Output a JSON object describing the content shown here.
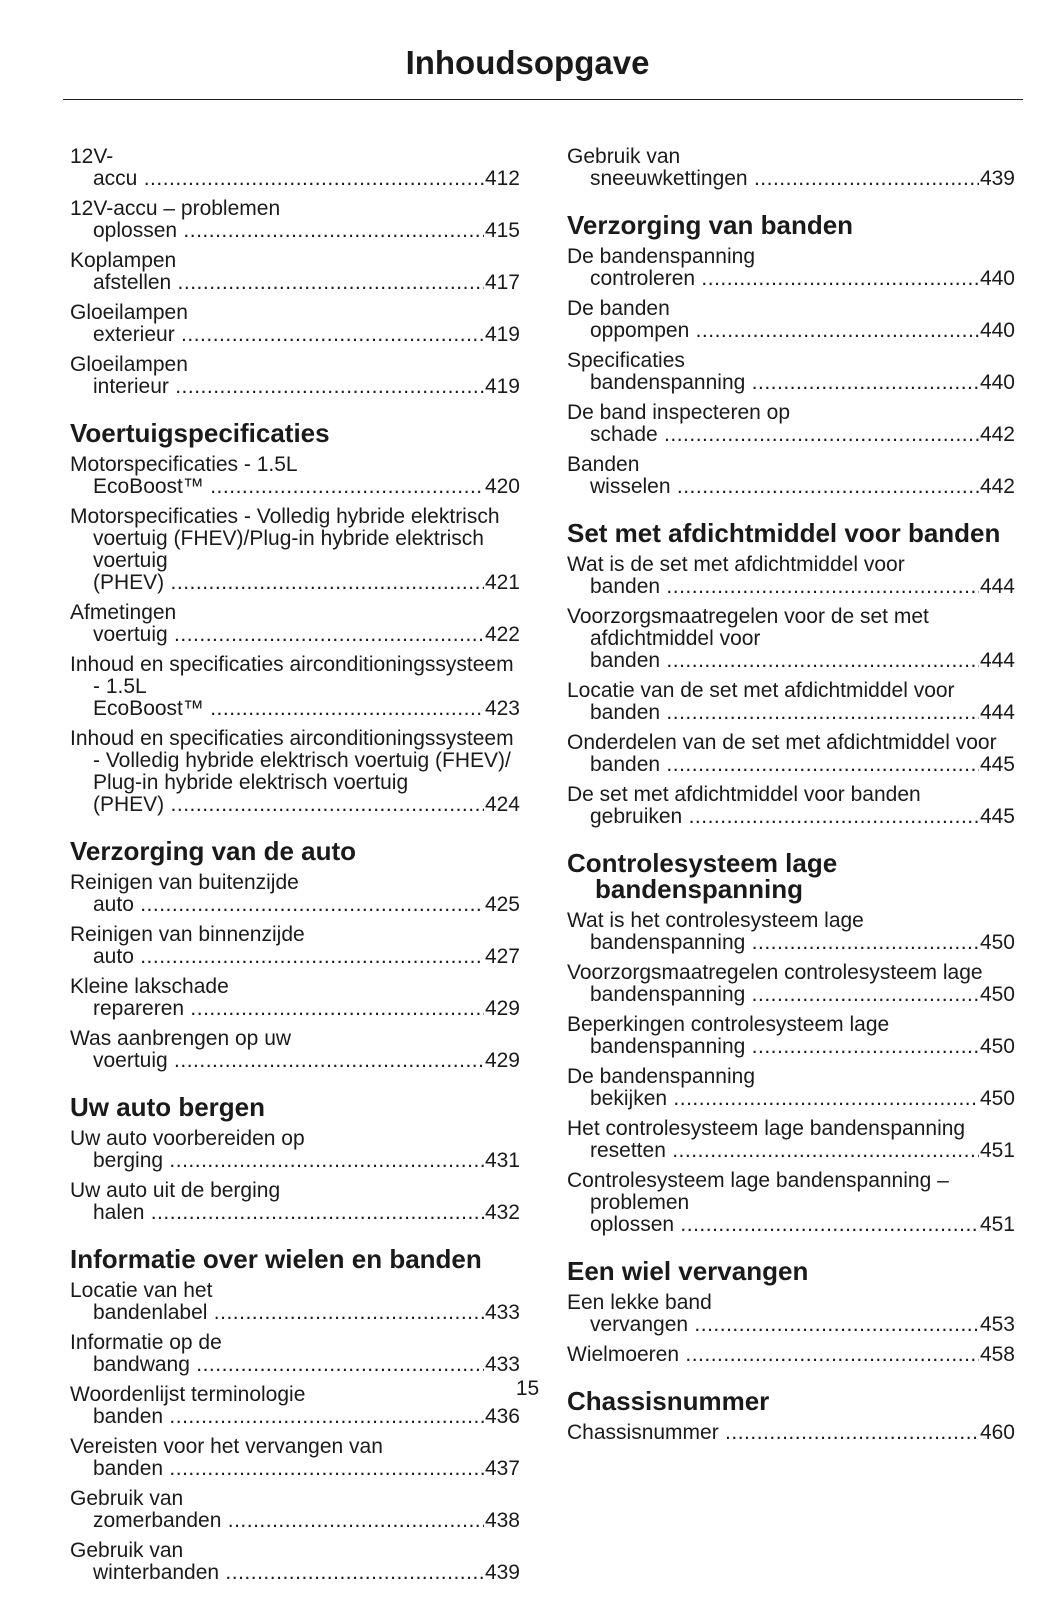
{
  "header": {
    "title": "Inhoudsopgave"
  },
  "columns": [
    {
      "sections": [
        {
          "entries": [
            {
              "text": "12V-accu",
              "page": 412
            },
            {
              "text": "12V-accu – problemen oplossen",
              "page": 415
            },
            {
              "text": "Koplampen afstellen",
              "page": 417
            },
            {
              "text": "Gloeilampen exterieur",
              "page": 419
            },
            {
              "text": "Gloeilampen interieur",
              "page": 419
            }
          ]
        },
        {
          "heading": "Voertuigspecificaties",
          "entries": [
            {
              "text": "Motorspecificaties - 1.5L EcoBoost™",
              "page": 420
            },
            {
              "text": "Motorspecificaties - Volledig hybride elektrisch voertuig (FHEV)/Plug-in hybride elektrisch voertuig (PHEV)",
              "page": 421
            },
            {
              "text": "Afmetingen voertuig",
              "page": 422
            },
            {
              "text": "Inhoud en specificaties airconditioningssysteem - 1.5L EcoBoost™",
              "page": 423
            },
            {
              "text": "Inhoud en specificaties airconditioningssysteem - Volledig hybride elektrisch voertuig (FHEV)/ Plug-in hybride elektrisch voertuig (PHEV)",
              "page": 424
            }
          ]
        },
        {
          "heading": "Verzorging van de auto",
          "entries": [
            {
              "text": "Reinigen van buitenzijde auto",
              "page": 425
            },
            {
              "text": "Reinigen van binnenzijde auto",
              "page": 427
            },
            {
              "text": "Kleine lakschade repareren",
              "page": 429
            },
            {
              "text": "Was aanbrengen op uw voertuig",
              "page": 429
            }
          ]
        },
        {
          "heading": "Uw auto bergen",
          "entries": [
            {
              "text": "Uw auto voorbereiden op berging",
              "page": 431
            },
            {
              "text": "Uw auto uit de berging halen",
              "page": 432
            }
          ]
        },
        {
          "heading": "Informatie over wielen en banden",
          "entries": [
            {
              "text": "Locatie van het bandenlabel",
              "page": 433
            },
            {
              "text": "Informatie op de bandwang",
              "page": 433
            },
            {
              "text": "Woordenlijst terminologie banden",
              "page": 436
            },
            {
              "text": "Vereisten voor het vervangen van banden",
              "page": 437
            },
            {
              "text": "Gebruik van zomerbanden",
              "page": 438
            },
            {
              "text": "Gebruik van winterbanden",
              "page": 439
            }
          ]
        }
      ]
    },
    {
      "sections": [
        {
          "entries": [
            {
              "text": "Gebruik van sneeuwkettingen",
              "page": 439
            }
          ]
        },
        {
          "heading": "Verzorging van banden",
          "entries": [
            {
              "text": "De bandenspanning controleren",
              "page": 440
            },
            {
              "text": "De banden oppompen",
              "page": 440
            },
            {
              "text": "Specificaties bandenspanning",
              "page": 440
            },
            {
              "text": "De band inspecteren op schade",
              "page": 442
            },
            {
              "text": "Banden wisselen",
              "page": 442
            }
          ]
        },
        {
          "heading": "Set met afdichtmiddel voor banden",
          "entries": [
            {
              "text": "Wat is de set met afdichtmiddel voor banden",
              "page": 444
            },
            {
              "text": "Voorzorgsmaatregelen voor de set met afdichtmiddel voor banden",
              "page": 444
            },
            {
              "text": "Locatie van de set met afdichtmiddel voor banden",
              "page": 444
            },
            {
              "text": "Onderdelen van de set met afdichtmiddel voor banden",
              "page": 445
            },
            {
              "text": "De set met afdichtmiddel voor banden gebruiken",
              "page": 445
            }
          ]
        },
        {
          "heading": "Controlesysteem lage bandenspanning",
          "entries": [
            {
              "text": "Wat is het controlesysteem lage bandenspanning",
              "page": 450
            },
            {
              "text": "Voorzorgsmaatregelen controlesysteem lage bandenspanning",
              "page": 450
            },
            {
              "text": "Beperkingen controlesysteem lage bandenspanning",
              "page": 450
            },
            {
              "text": "De bandenspanning bekijken",
              "page": 450
            },
            {
              "text": "Het controlesysteem lage bandenspanning resetten",
              "page": 451
            },
            {
              "text": "Controlesysteem lage bandenspanning – problemen oplossen",
              "page": 451
            }
          ]
        },
        {
          "heading": "Een wiel vervangen",
          "entries": [
            {
              "text": "Een lekke band vervangen",
              "page": 453
            },
            {
              "text": "Wielmoeren",
              "page": 458
            }
          ]
        },
        {
          "heading": "Chassisnummer",
          "entries": [
            {
              "text": "Chassisnummer",
              "page": 460
            }
          ]
        }
      ]
    }
  ],
  "footer": {
    "page_number": 15
  }
}
